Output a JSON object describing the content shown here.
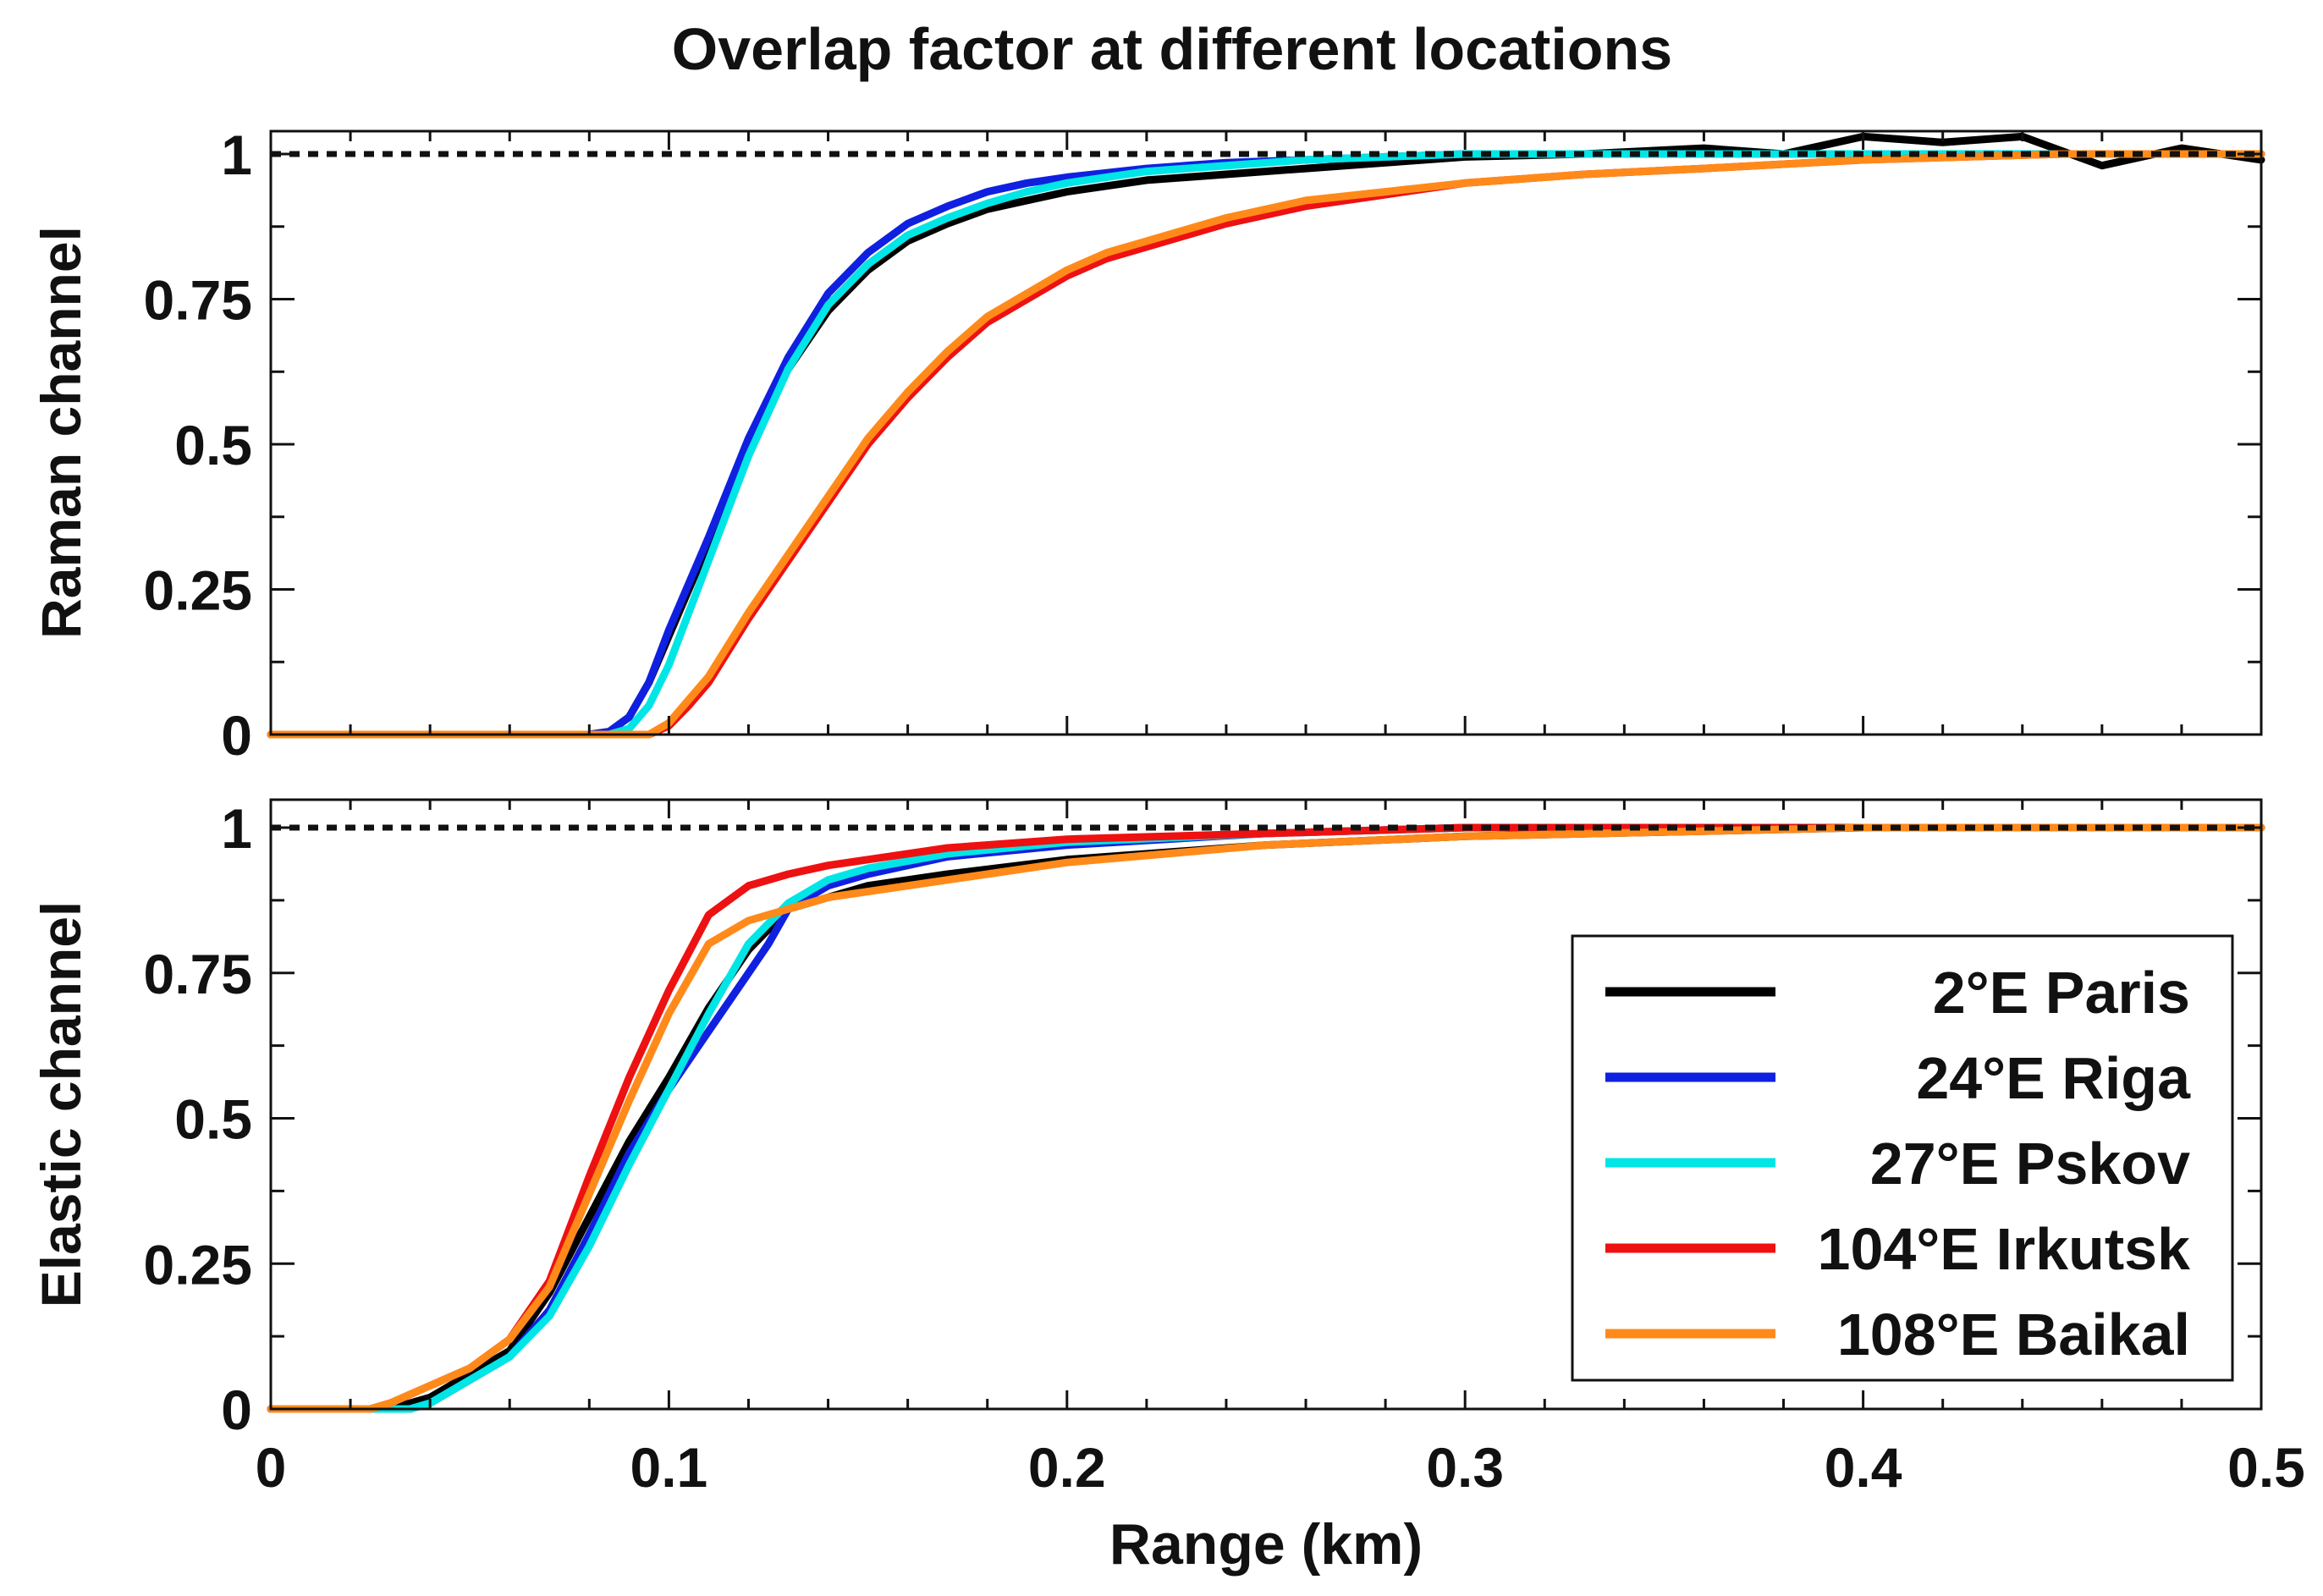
{
  "chart_data": [
    {
      "type": "line",
      "panel": "raman",
      "title": "Overlap factor at different locations",
      "xlabel": "Range (km)",
      "ylabel": "Raman channel",
      "xlim": [
        0,
        0.5
      ],
      "ylim": [
        0,
        1.05
      ],
      "xticks": [
        "0",
        "0.1",
        "0.2",
        "0.3",
        "0.4",
        "0.5"
      ],
      "yticks": [
        "0",
        "0.25",
        "0.5",
        "0.75",
        "1"
      ],
      "reference_line": 1,
      "series": [
        {
          "name": "2°E Paris",
          "color": "#000000",
          "x": [
            0,
            0.08,
            0.085,
            0.09,
            0.095,
            0.1,
            0.11,
            0.12,
            0.13,
            0.14,
            0.15,
            0.16,
            0.17,
            0.18,
            0.19,
            0.2,
            0.22,
            0.24,
            0.26,
            0.28,
            0.3,
            0.33,
            0.36,
            0.38,
            0.4,
            0.42,
            0.44,
            0.46,
            0.48,
            0.5
          ],
          "y": [
            0,
            0,
            0.005,
            0.03,
            0.09,
            0.17,
            0.33,
            0.5,
            0.63,
            0.73,
            0.8,
            0.85,
            0.88,
            0.905,
            0.92,
            0.935,
            0.955,
            0.965,
            0.975,
            0.985,
            0.995,
            1.0,
            1.01,
            1.0,
            1.03,
            1.02,
            1.03,
            0.98,
            1.01,
            0.99
          ]
        },
        {
          "name": "24°E Riga",
          "color": "#1020e0",
          "x": [
            0,
            0.08,
            0.085,
            0.09,
            0.095,
            0.1,
            0.11,
            0.12,
            0.13,
            0.14,
            0.15,
            0.16,
            0.17,
            0.18,
            0.19,
            0.2,
            0.22,
            0.24,
            0.26,
            0.28,
            0.3,
            0.35,
            0.4,
            0.45,
            0.5
          ],
          "y": [
            0,
            0,
            0.005,
            0.03,
            0.09,
            0.18,
            0.34,
            0.51,
            0.65,
            0.76,
            0.83,
            0.88,
            0.91,
            0.935,
            0.95,
            0.96,
            0.975,
            0.985,
            0.99,
            0.995,
            1.0,
            1.0,
            1.0,
            1.0,
            1.0
          ]
        },
        {
          "name": "27°E Pskov",
          "color": "#00e5e5",
          "x": [
            0,
            0.085,
            0.09,
            0.095,
            0.1,
            0.11,
            0.12,
            0.13,
            0.14,
            0.15,
            0.16,
            0.17,
            0.18,
            0.19,
            0.2,
            0.22,
            0.24,
            0.26,
            0.28,
            0.3,
            0.35,
            0.4,
            0.45,
            0.5
          ],
          "y": [
            0,
            0,
            0.01,
            0.05,
            0.12,
            0.3,
            0.48,
            0.63,
            0.74,
            0.81,
            0.86,
            0.89,
            0.915,
            0.935,
            0.95,
            0.97,
            0.98,
            0.99,
            0.995,
            1.0,
            1.0,
            1.0,
            1.0,
            1.0
          ]
        },
        {
          "name": "104°E Irkutsk",
          "color": "#ee1111",
          "x": [
            0,
            0.095,
            0.1,
            0.105,
            0.11,
            0.12,
            0.13,
            0.14,
            0.15,
            0.16,
            0.17,
            0.18,
            0.19,
            0.2,
            0.21,
            0.22,
            0.23,
            0.24,
            0.26,
            0.28,
            0.3,
            0.33,
            0.36,
            0.4,
            0.45,
            0.5
          ],
          "y": [
            0,
            0,
            0.015,
            0.05,
            0.09,
            0.2,
            0.3,
            0.4,
            0.5,
            0.58,
            0.65,
            0.71,
            0.75,
            0.79,
            0.82,
            0.84,
            0.86,
            0.88,
            0.91,
            0.93,
            0.95,
            0.965,
            0.975,
            0.99,
            1.0,
            1.0
          ]
        },
        {
          "name": "108°E Baikal",
          "color": "#ff8a1a",
          "x": [
            0,
            0.095,
            0.1,
            0.105,
            0.11,
            0.12,
            0.13,
            0.14,
            0.15,
            0.16,
            0.17,
            0.18,
            0.19,
            0.2,
            0.21,
            0.22,
            0.23,
            0.24,
            0.26,
            0.28,
            0.3,
            0.33,
            0.36,
            0.4,
            0.45,
            0.5
          ],
          "y": [
            0,
            0,
            0.02,
            0.06,
            0.1,
            0.21,
            0.31,
            0.41,
            0.51,
            0.59,
            0.66,
            0.72,
            0.76,
            0.8,
            0.83,
            0.85,
            0.87,
            0.89,
            0.92,
            0.935,
            0.95,
            0.965,
            0.975,
            0.99,
            1.0,
            1.0
          ]
        }
      ]
    },
    {
      "type": "line",
      "panel": "elastic",
      "xlabel": "Range (km)",
      "ylabel": "Elastic channel",
      "xlim": [
        0,
        0.5
      ],
      "ylim": [
        0,
        1.05
      ],
      "xticks": [
        "0",
        "0.1",
        "0.2",
        "0.3",
        "0.4",
        "0.5"
      ],
      "yticks": [
        "0",
        "0.25",
        "0.5",
        "0.75",
        "1"
      ],
      "reference_line": 1,
      "legend": {
        "position": "lower-right",
        "entries": [
          "2°E Paris",
          "24°E Riga",
          "27°E Pskov",
          "104°E Irkutsk",
          "108°E Baikal"
        ]
      },
      "series": [
        {
          "name": "2°E Paris",
          "color": "#000000",
          "x": [
            0,
            0.03,
            0.04,
            0.05,
            0.06,
            0.07,
            0.08,
            0.09,
            0.1,
            0.11,
            0.12,
            0.13,
            0.14,
            0.15,
            0.17,
            0.2,
            0.25,
            0.3,
            0.4,
            0.5
          ],
          "y": [
            0,
            0,
            0.02,
            0.06,
            0.1,
            0.2,
            0.33,
            0.46,
            0.57,
            0.69,
            0.79,
            0.86,
            0.88,
            0.9,
            0.92,
            0.945,
            0.97,
            0.985,
            1.0,
            1.0
          ]
        },
        {
          "name": "24°E Riga",
          "color": "#1020e0",
          "x": [
            0,
            0.035,
            0.04,
            0.05,
            0.06,
            0.07,
            0.08,
            0.09,
            0.1,
            0.11,
            0.12,
            0.125,
            0.13,
            0.14,
            0.15,
            0.17,
            0.2,
            0.25,
            0.3,
            0.4,
            0.5
          ],
          "y": [
            0,
            0,
            0.01,
            0.05,
            0.09,
            0.17,
            0.3,
            0.44,
            0.55,
            0.65,
            0.75,
            0.8,
            0.86,
            0.9,
            0.92,
            0.95,
            0.97,
            0.99,
            1.0,
            1.0,
            1.0
          ]
        },
        {
          "name": "27°E Pskov",
          "color": "#00e5e5",
          "x": [
            0,
            0.035,
            0.04,
            0.05,
            0.06,
            0.07,
            0.08,
            0.09,
            0.1,
            0.11,
            0.12,
            0.13,
            0.14,
            0.15,
            0.17,
            0.2,
            0.25,
            0.3,
            0.4,
            0.5
          ],
          "y": [
            0,
            0,
            0.01,
            0.05,
            0.09,
            0.16,
            0.28,
            0.42,
            0.55,
            0.68,
            0.8,
            0.87,
            0.91,
            0.93,
            0.955,
            0.975,
            0.99,
            1.0,
            1.0,
            1.0
          ]
        },
        {
          "name": "104°E Irkutsk",
          "color": "#ee1111",
          "x": [
            0,
            0.025,
            0.03,
            0.04,
            0.05,
            0.06,
            0.07,
            0.08,
            0.09,
            0.1,
            0.11,
            0.12,
            0.13,
            0.14,
            0.15,
            0.17,
            0.2,
            0.25,
            0.3,
            0.4,
            0.5
          ],
          "y": [
            0,
            0,
            0.01,
            0.04,
            0.07,
            0.12,
            0.22,
            0.4,
            0.57,
            0.72,
            0.85,
            0.9,
            0.92,
            0.935,
            0.945,
            0.965,
            0.98,
            0.99,
            1.0,
            1.0,
            1.0
          ]
        },
        {
          "name": "108°E Baikal",
          "color": "#ff8a1a",
          "x": [
            0,
            0.025,
            0.03,
            0.04,
            0.05,
            0.06,
            0.07,
            0.08,
            0.09,
            0.1,
            0.11,
            0.12,
            0.13,
            0.14,
            0.15,
            0.17,
            0.2,
            0.25,
            0.3,
            0.4,
            0.5
          ],
          "y": [
            0,
            0,
            0.01,
            0.04,
            0.07,
            0.12,
            0.21,
            0.37,
            0.53,
            0.68,
            0.8,
            0.84,
            0.86,
            0.88,
            0.89,
            0.91,
            0.94,
            0.97,
            0.985,
            1.0,
            1.0
          ]
        }
      ]
    }
  ]
}
